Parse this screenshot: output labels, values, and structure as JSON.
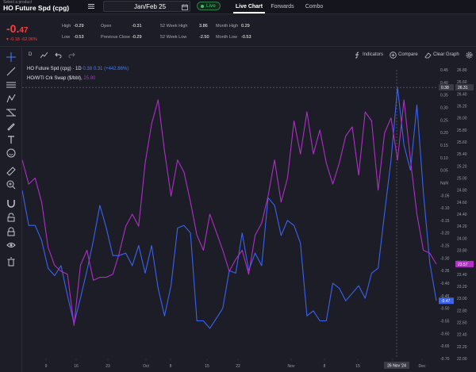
{
  "product": {
    "caption": "Select a product",
    "name": "HO Future Spd (cpg)"
  },
  "date_picker": {
    "value": "Jan/Feb 25"
  },
  "live": {
    "label": "Live"
  },
  "tabs": [
    {
      "label": "Live Chart",
      "active": true
    },
    {
      "label": "Forwards",
      "active": false
    },
    {
      "label": "Combo",
      "active": false
    }
  ],
  "quote": {
    "last": "-0.",
    "last_small": "47",
    "change": "▾ -0.18",
    "change_pct": "-62.06%"
  },
  "stats": {
    "high_label": "High",
    "high": "-0.29",
    "low_label": "Low",
    "low": "-0.53",
    "open_label": "Open",
    "open": "-0.31",
    "prev_close_label": "Previous Close",
    "prev_close": "-0.29",
    "wk52_high_label": "52 Week High",
    "wk52_high": "3.86",
    "wk52_low_label": "52 Week Low",
    "wk52_low": "-2.50",
    "month_high_label": "Month High",
    "month_high": "0.29",
    "month_low_label": "Month Low",
    "month_low": "-0.53"
  },
  "toolbar": {
    "interval": "D",
    "indicators": "Indicators",
    "compare": "Compare",
    "clear_graph": "Clear Graph"
  },
  "icons": {
    "menu": "list-icon",
    "calendar": "calendar-icon",
    "chart_type": "line-chart-icon",
    "undo": "undo-icon",
    "redo": "redo-icon",
    "indicators": "function-icon",
    "compare": "plus-circle-icon",
    "clear": "eraser-icon",
    "settings": "gear-icon"
  },
  "colors": {
    "accent_blue": "#3b63f0",
    "accent_purple": "#b02fc7",
    "negative": "#ef4444",
    "live_green": "#36c46a"
  },
  "legend": {
    "series1_name": "HO Future Spd (cpg) · 1D",
    "series1_vals": "0.38  0.31  (+442.86%)",
    "series2_name": "HO/WTI Crk Swap ($/bbl),",
    "series2_val": "25.80"
  },
  "crosshair": {
    "date_label": "26 Nov '24",
    "left_value": "0.38",
    "right_value": "26.31"
  },
  "badges": {
    "blue_last": "-0.47",
    "purple_last": "23.57"
  },
  "chart_data": {
    "type": "line",
    "x_ticks": [
      "9",
      "16",
      "23",
      "Oct",
      "8",
      "15",
      "22",
      "Nov",
      "8",
      "15",
      "26 Nov '24",
      "Dec"
    ],
    "left_axis": {
      "ticks": [
        "0.45",
        "0.40",
        "0.35",
        "0.30",
        "0.25",
        "0.20",
        "0.15",
        "0.10",
        "0.05",
        "NaN",
        "-0.05",
        "-0.10",
        "-0.15",
        "-0.20",
        "-0.25",
        "-0.30",
        "-0.35",
        "-0.40",
        "-0.45",
        "-0.50",
        "-0.55",
        "-0.60",
        "-0.65",
        "-0.70"
      ],
      "range": [
        -0.7,
        0.45
      ]
    },
    "right_axis": {
      "ticks": [
        "26.80",
        "26.60",
        "26.40",
        "26.20",
        "26.00",
        "25.80",
        "25.60",
        "25.40",
        "25.20",
        "25.00",
        "24.80",
        "24.60",
        "24.40",
        "24.20",
        "24.00",
        "23.80",
        "23.60",
        "23.40",
        "23.20",
        "23.00",
        "22.80",
        "22.60",
        "22.40",
        "22.20",
        "22.00"
      ],
      "range": [
        22.0,
        26.8
      ]
    },
    "series": [
      {
        "name": "HO Future Spd (cpg) · 1D",
        "axis": "left",
        "values": [
          -0.03,
          -0.17,
          -0.17,
          -0.23,
          -0.34,
          -0.37,
          -0.33,
          -0.45,
          -0.56,
          -0.46,
          -0.35,
          -0.23,
          -0.09,
          -0.18,
          -0.29,
          -0.29,
          -0.28,
          -0.33,
          -0.25,
          -0.36,
          -0.25,
          -0.42,
          -0.53,
          -0.41,
          -0.18,
          -0.17,
          -0.2,
          -0.55,
          -0.55,
          -0.58,
          -0.54,
          -0.5,
          -0.35,
          -0.36,
          -0.2,
          -0.35,
          -0.28,
          -0.33,
          -0.06,
          -0.09,
          -0.21,
          -0.15,
          -0.17,
          -0.24,
          -0.53,
          -0.51,
          -0.55,
          -0.55,
          -0.4,
          -0.42,
          -0.47,
          -0.44,
          -0.41,
          -0.46,
          -0.36,
          -0.34,
          -0.12,
          0.09,
          0.38,
          0.15,
          0.05,
          0.31,
          -0.04,
          -0.32,
          -0.47
        ]
      },
      {
        "name": "HO/WTI Crk Swap ($/bbl)",
        "axis": "right",
        "values": [
          25.3,
          24.9,
          25.0,
          24.6,
          23.85,
          23.55,
          23.45,
          23.4,
          22.55,
          23.55,
          23.8,
          23.3,
          23.35,
          23.35,
          23.4,
          23.75,
          24.2,
          24.4,
          24.2,
          25.25,
          25.9,
          26.3,
          25.45,
          24.7,
          25.3,
          25.1,
          24.6,
          24.05,
          23.8,
          24.4,
          24.1,
          23.8,
          23.45,
          23.65,
          23.8,
          23.4,
          24.05,
          24.25,
          24.7,
          25.3,
          24.6,
          25.0,
          25.95,
          25.4,
          26.1,
          25.4,
          25.8,
          25.25,
          24.9,
          25.25,
          25.7,
          25.85,
          25.05,
          26.1,
          25.95,
          24.8,
          25.75,
          26.0,
          25.3,
          26.3,
          25.3,
          24.4,
          23.8,
          23.75,
          23.57
        ]
      }
    ],
    "grid": true
  }
}
